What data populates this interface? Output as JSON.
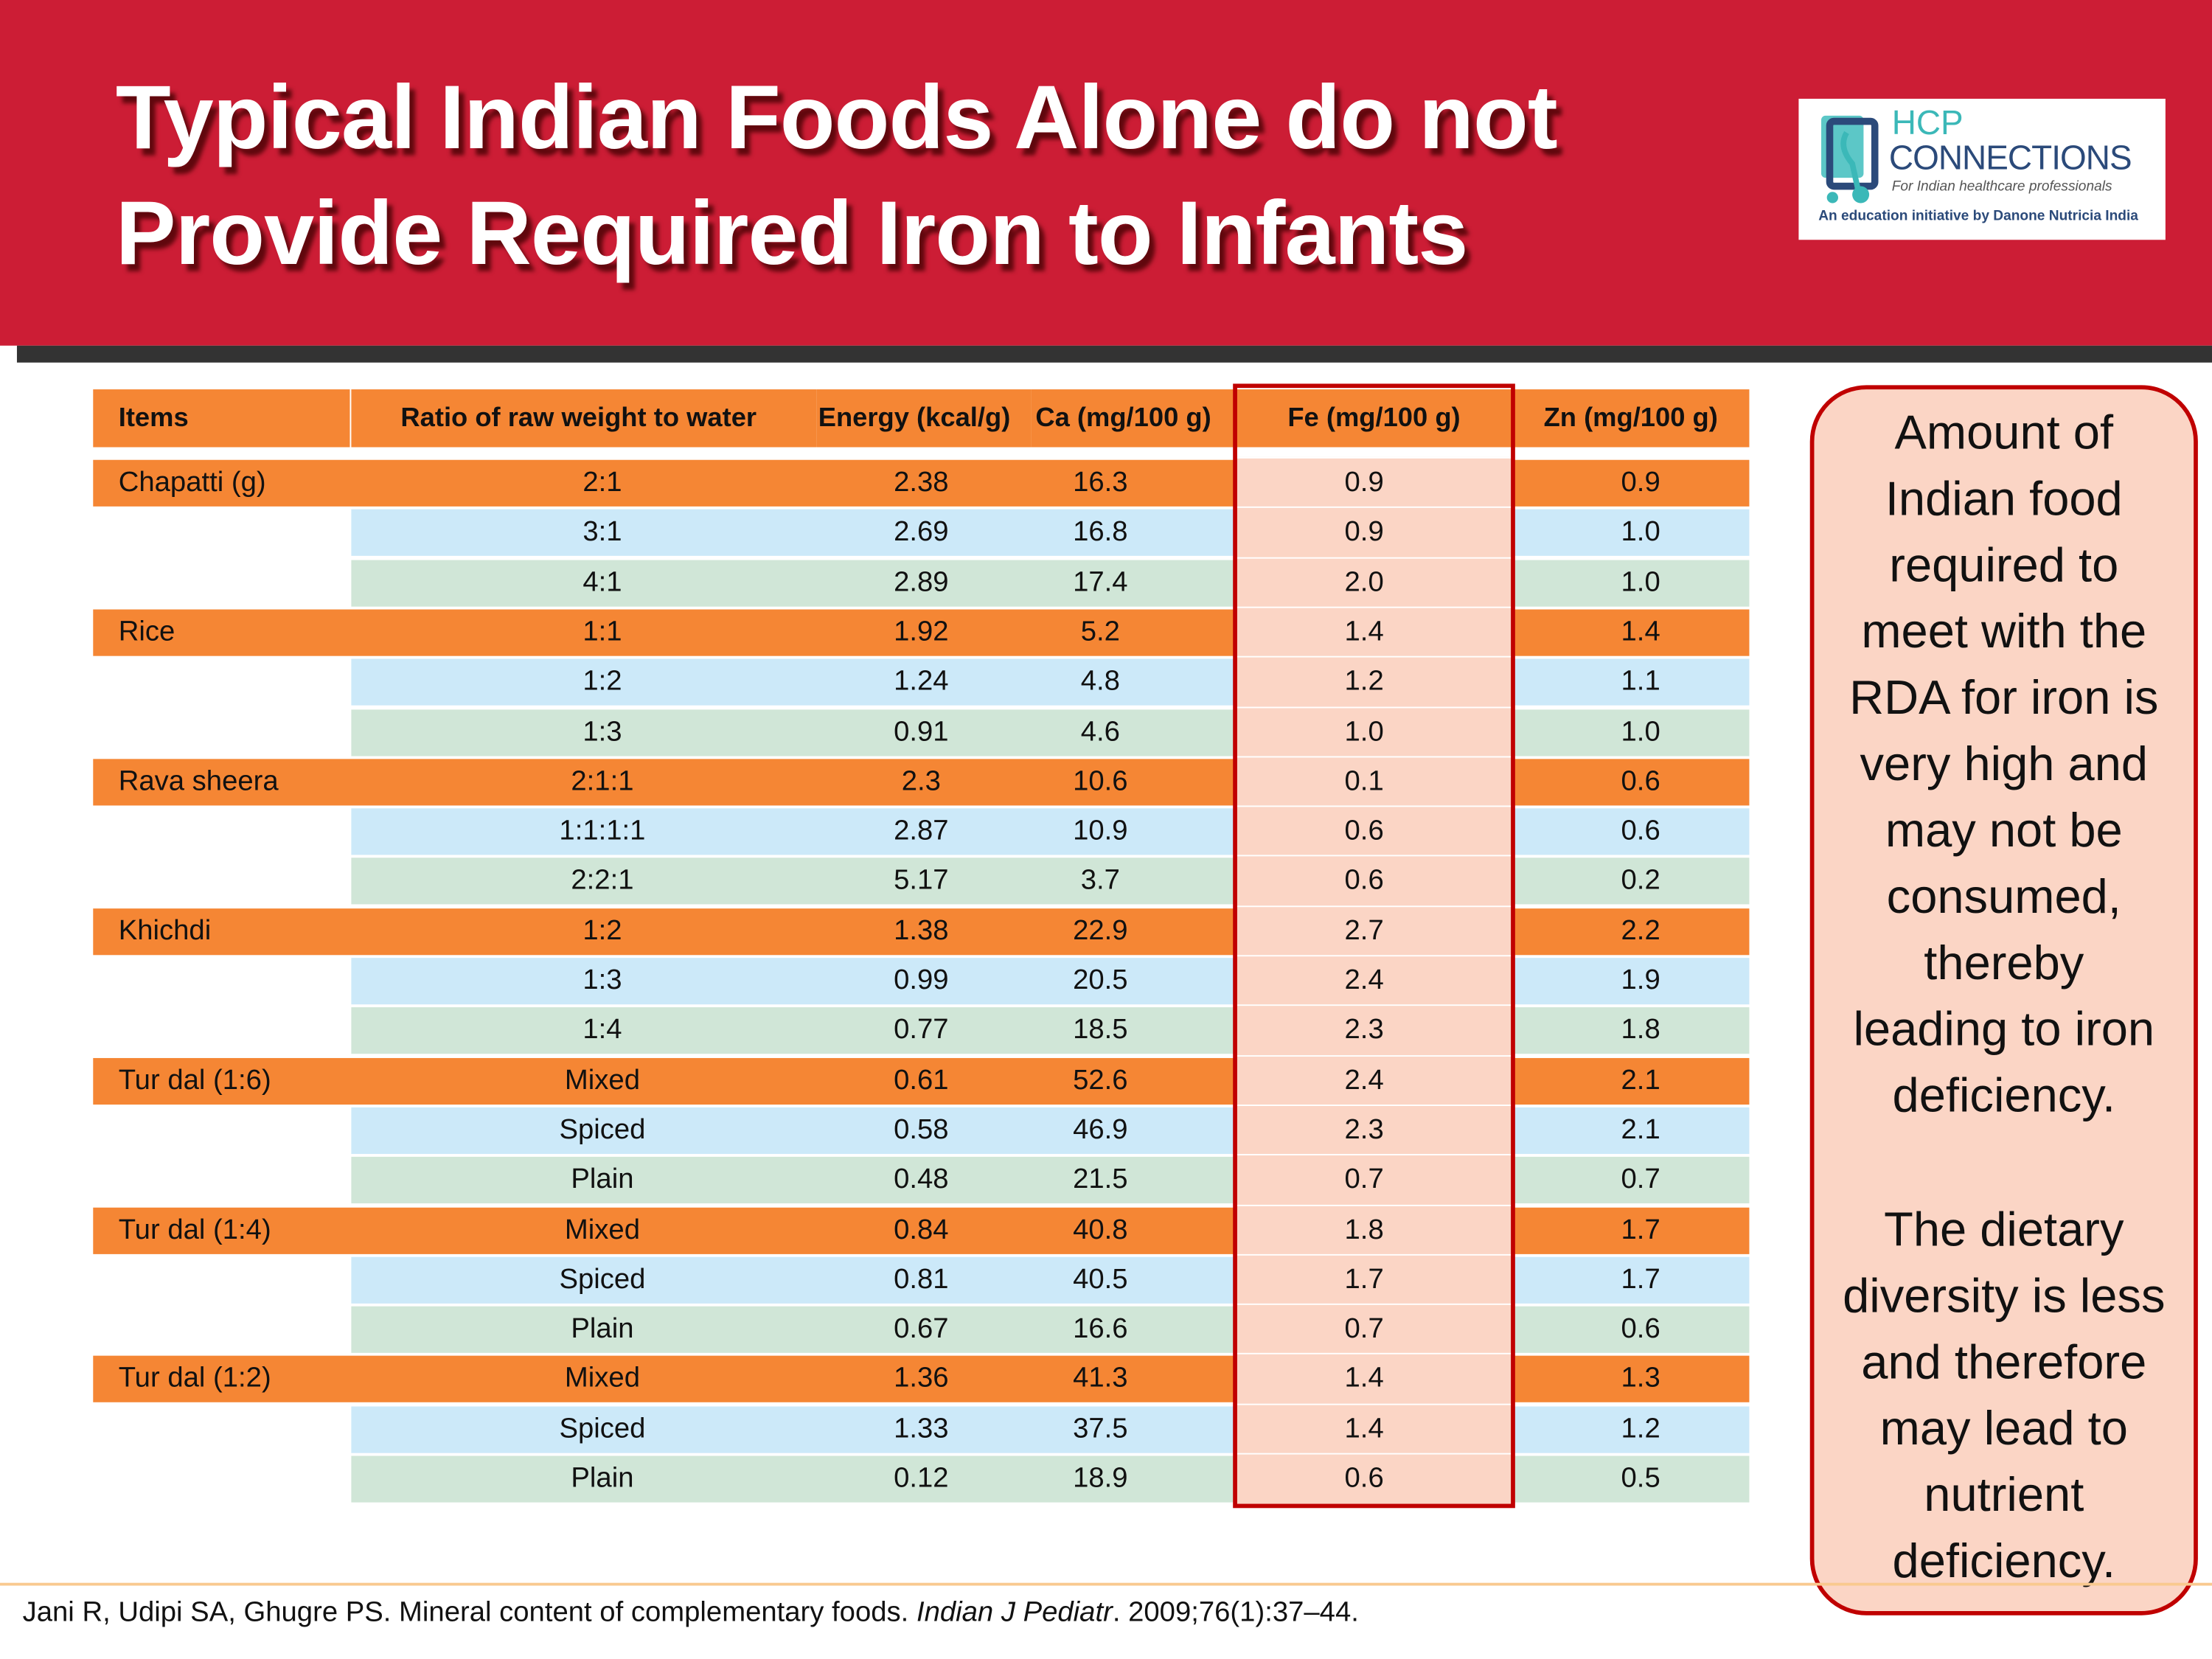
{
  "title": {
    "line1": "Typical Indian Foods Alone do not",
    "line2": "Provide Required Iron to Infants"
  },
  "logo": {
    "line1": "HCP",
    "line2": "CONNECTIONS",
    "tagline": "For Indian healthcare professionals",
    "initiative": "An education initiative by Danone Nutricia India"
  },
  "table": {
    "headers": [
      "Items",
      "Ratio of raw weight to water",
      "Energy (kcal/g)",
      "Ca (mg/100 g)",
      "Fe (mg/100 g)",
      "Zn (mg/100 g)"
    ],
    "rows": [
      [
        "Chapatti (g)",
        "2:1",
        "2.38",
        "16.3",
        "0.9",
        "0.9"
      ],
      [
        "",
        "3:1",
        "2.69",
        "16.8",
        "0.9",
        "1.0"
      ],
      [
        "",
        "4:1",
        "2.89",
        "17.4",
        "2.0",
        "1.0"
      ],
      [
        "Rice",
        "1:1",
        "1.92",
        "5.2",
        "1.4",
        "1.4"
      ],
      [
        "",
        "1:2",
        "1.24",
        "4.8",
        "1.2",
        "1.1"
      ],
      [
        "",
        "1:3",
        "0.91",
        "4.6",
        "1.0",
        "1.0"
      ],
      [
        "Rava sheera",
        "2:1:1",
        "2.3",
        "10.6",
        "0.1",
        "0.6"
      ],
      [
        "",
        "1:1:1:1",
        "2.87",
        "10.9",
        "0.6",
        "0.6"
      ],
      [
        "",
        "2:2:1",
        "5.17",
        "3.7",
        "0.6",
        "0.2"
      ],
      [
        "Khichdi",
        "1:2",
        "1.38",
        "22.9",
        "2.7",
        "2.2"
      ],
      [
        "",
        "1:3",
        "0.99",
        "20.5",
        "2.4",
        "1.9"
      ],
      [
        "",
        "1:4",
        "0.77",
        "18.5",
        "2.3",
        "1.8"
      ],
      [
        "Tur dal (1:6)",
        "Mixed",
        "0.61",
        "52.6",
        "2.4",
        "2.1"
      ],
      [
        "",
        "Spiced",
        "0.58",
        "46.9",
        "2.3",
        "2.1"
      ],
      [
        "",
        "Plain",
        "0.48",
        "21.5",
        "0.7",
        "0.7"
      ],
      [
        "Tur dal (1:4)",
        "Mixed",
        "0.84",
        "40.8",
        "1.8",
        "1.7"
      ],
      [
        "",
        "Spiced",
        "0.81",
        "40.5",
        "1.7",
        "1.7"
      ],
      [
        "",
        "Plain",
        "0.67",
        "16.6",
        "0.7",
        "0.6"
      ],
      [
        "Tur dal (1:2)",
        "Mixed",
        "1.36",
        "41.3",
        "1.4",
        "1.3"
      ],
      [
        "",
        "Spiced",
        "1.33",
        "37.5",
        "1.4",
        "1.2"
      ],
      [
        "",
        "Plain",
        "0.12",
        "18.9",
        "0.6",
        "0.5"
      ]
    ]
  },
  "panel": {
    "para1": [
      "Amount of",
      "Indian food",
      "required to",
      "meet with the",
      "RDA for iron is",
      "very high and",
      "may not be",
      "consumed,",
      "thereby",
      "leading to iron",
      "deficiency."
    ],
    "para2": [
      "The dietary",
      "diversity is less",
      "and therefore",
      "may lead to",
      "nutrient",
      "deficiency."
    ]
  },
  "citation": {
    "authors": "Jani R, Udipi SA, Ghugre PS. Mineral content of complementary foods. ",
    "journal": "Indian J Pediatr",
    "details": ". 2009;76(1):37–44."
  },
  "colors": {
    "header_red": "#cc1d35",
    "orange": "#f58634",
    "blue": "#cce9f9",
    "green": "#d0e6d7",
    "fe_highlight": "#fbd5c5",
    "border_red": "#c00000"
  }
}
